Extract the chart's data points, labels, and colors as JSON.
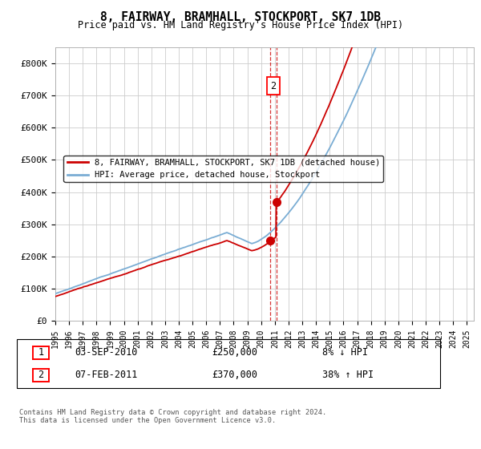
{
  "title": "8, FAIRWAY, BRAMHALL, STOCKPORT, SK7 1DB",
  "subtitle": "Price paid vs. HM Land Registry's House Price Index (HPI)",
  "ylabel_ticks": [
    "£0",
    "£100K",
    "£200K",
    "£300K",
    "£400K",
    "£500K",
    "£600K",
    "£700K",
    "£800K"
  ],
  "ylim": [
    0,
    850000
  ],
  "xlim_start": 1995.0,
  "xlim_end": 2025.5,
  "line1_color": "#cc0000",
  "line2_color": "#7aadd4",
  "transaction1_date": 2010.67,
  "transaction1_price": 250000,
  "transaction2_date": 2011.1,
  "transaction2_price": 370000,
  "legend_label1": "8, FAIRWAY, BRAMHALL, STOCKPORT, SK7 1DB (detached house)",
  "legend_label2": "HPI: Average price, detached house, Stockport",
  "note1_num": "1",
  "note1_date": "03-SEP-2010",
  "note1_price": "£250,000",
  "note1_hpi": "8% ↓ HPI",
  "note2_num": "2",
  "note2_date": "07-FEB-2011",
  "note2_price": "£370,000",
  "note2_hpi": "38% ↑ HPI",
  "footer": "Contains HM Land Registry data © Crown copyright and database right 2024.\nThis data is licensed under the Open Government Licence v3.0.",
  "background_color": "#ffffff",
  "grid_color": "#cccccc"
}
